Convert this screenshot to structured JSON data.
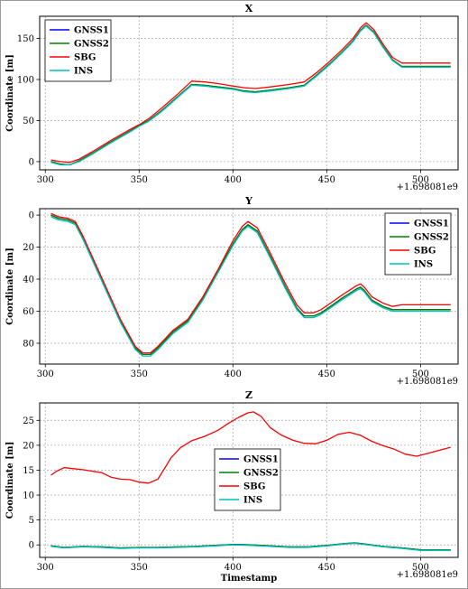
{
  "figure": {
    "offset_label": "+1.698081e9"
  },
  "chart_data": [
    {
      "type": "line",
      "title": "X",
      "xlabel": "",
      "ylabel": "Coordinate [m]",
      "xlim": [
        297,
        520
      ],
      "ylim": [
        -10,
        177
      ],
      "xticks": [
        300,
        350,
        400,
        450,
        500
      ],
      "yticks": [
        0,
        50,
        100,
        150
      ],
      "grid": true,
      "legend_placement": "top-left",
      "series": [
        {
          "name": "GNSS1",
          "color": "#0000ff",
          "x": [
            303,
            308,
            313,
            318,
            325,
            335,
            345,
            350,
            355,
            362,
            370,
            378,
            385,
            392,
            400,
            406,
            412,
            420,
            430,
            438,
            445,
            452,
            458,
            464,
            468,
            471,
            475,
            480,
            485,
            490,
            500,
            516
          ],
          "y": [
            0,
            -3,
            -4,
            1,
            10,
            24,
            37,
            44,
            50,
            62,
            78,
            94,
            93,
            91,
            89,
            86,
            85,
            87,
            90,
            93,
            106,
            120,
            133,
            147,
            160,
            166,
            158,
            140,
            124,
            116,
            116,
            116
          ]
        },
        {
          "name": "GNSS2",
          "color": "#008000",
          "x": [
            303,
            308,
            313,
            318,
            325,
            335,
            345,
            350,
            355,
            362,
            370,
            378,
            385,
            392,
            400,
            406,
            412,
            420,
            430,
            438,
            445,
            452,
            458,
            464,
            468,
            471,
            475,
            480,
            485,
            490,
            500,
            516
          ],
          "y": [
            0,
            -3,
            -4,
            1,
            10,
            24,
            37,
            44,
            50,
            62,
            78,
            94,
            93,
            91,
            89,
            86,
            85,
            87,
            90,
            93,
            106,
            120,
            133,
            147,
            160,
            166,
            158,
            140,
            124,
            116,
            116,
            116
          ]
        },
        {
          "name": "SBG",
          "color": "#ff0000",
          "x": [
            303,
            308,
            313,
            318,
            325,
            335,
            345,
            350,
            355,
            362,
            370,
            378,
            385,
            392,
            400,
            406,
            412,
            420,
            430,
            438,
            445,
            452,
            458,
            464,
            468,
            471,
            475,
            480,
            485,
            490,
            500,
            516
          ],
          "y": [
            2,
            0,
            -1,
            3,
            12,
            26,
            39,
            45,
            52,
            65,
            81,
            98,
            97,
            95,
            92,
            90,
            89,
            91,
            94,
            97,
            109,
            123,
            136,
            150,
            163,
            169,
            161,
            143,
            127,
            120,
            120,
            120
          ]
        },
        {
          "name": "INS",
          "color": "#00bfbf",
          "x": [
            303,
            308,
            313,
            318,
            325,
            335,
            345,
            350,
            355,
            362,
            370,
            378,
            385,
            392,
            400,
            406,
            412,
            420,
            430,
            438,
            445,
            452,
            458,
            464,
            468,
            471,
            475,
            480,
            485,
            490,
            500,
            516
          ],
          "y": [
            -1,
            -4,
            -4,
            0,
            9,
            23,
            36,
            43,
            49,
            61,
            77,
            93,
            92,
            90,
            88,
            85,
            84,
            86,
            89,
            92,
            105,
            119,
            132,
            146,
            159,
            165,
            157,
            139,
            123,
            115,
            115,
            115
          ]
        }
      ]
    },
    {
      "type": "line",
      "title": "Y",
      "xlabel": "",
      "ylabel": "Coordinate [m]",
      "xlim": [
        297,
        520
      ],
      "ylim": [
        93,
        -4
      ],
      "xticks": [
        300,
        350,
        400,
        450,
        500
      ],
      "yticks": [
        0,
        20,
        40,
        60,
        80
      ],
      "grid": true,
      "legend_placement": "top-right",
      "series": [
        {
          "name": "GNSS1",
          "color": "#0000ff",
          "x": [
            303,
            307,
            312,
            316,
            320,
            330,
            340,
            348,
            352,
            356,
            360,
            368,
            376,
            384,
            392,
            400,
            405,
            408,
            413,
            420,
            428,
            434,
            438,
            443,
            447,
            452,
            458,
            462,
            466,
            468,
            470,
            474,
            480,
            485,
            490,
            500,
            516
          ],
          "y": [
            0,
            2,
            3,
            5,
            14,
            40,
            66,
            83,
            87,
            87,
            83,
            73,
            66,
            52,
            35,
            18,
            9,
            6,
            10,
            26,
            45,
            58,
            63,
            63,
            61,
            57,
            52,
            49,
            46,
            45,
            47,
            53,
            57,
            59,
            59,
            59,
            59
          ]
        },
        {
          "name": "GNSS2",
          "color": "#008000",
          "x": [
            303,
            307,
            312,
            316,
            320,
            330,
            340,
            348,
            352,
            356,
            360,
            368,
            376,
            384,
            392,
            400,
            405,
            408,
            413,
            420,
            428,
            434,
            438,
            443,
            447,
            452,
            458,
            462,
            466,
            468,
            470,
            474,
            480,
            485,
            490,
            500,
            516
          ],
          "y": [
            0,
            2,
            3,
            5,
            14,
            40,
            66,
            83,
            87,
            87,
            83,
            73,
            66,
            52,
            35,
            18,
            9,
            6,
            10,
            26,
            45,
            58,
            63,
            63,
            61,
            57,
            52,
            49,
            46,
            45,
            47,
            53,
            57,
            59,
            59,
            59,
            59
          ]
        },
        {
          "name": "SBG",
          "color": "#ff0000",
          "x": [
            303,
            307,
            312,
            316,
            320,
            330,
            340,
            348,
            352,
            356,
            360,
            368,
            376,
            384,
            392,
            400,
            405,
            408,
            413,
            420,
            428,
            434,
            438,
            443,
            447,
            452,
            458,
            462,
            466,
            468,
            470,
            474,
            480,
            485,
            490,
            500,
            516
          ],
          "y": [
            -1,
            1,
            2,
            4,
            13,
            39,
            65,
            82,
            86,
            86,
            82,
            72,
            65,
            51,
            34,
            16,
            7,
            4,
            8,
            24,
            43,
            56,
            61,
            61,
            59,
            55,
            50,
            47,
            44,
            43,
            45,
            51,
            55,
            57,
            56,
            56,
            56
          ]
        },
        {
          "name": "INS",
          "color": "#00bfbf",
          "x": [
            303,
            307,
            312,
            316,
            320,
            330,
            340,
            348,
            352,
            356,
            360,
            368,
            376,
            384,
            392,
            400,
            405,
            408,
            413,
            420,
            428,
            434,
            438,
            443,
            447,
            452,
            458,
            462,
            466,
            468,
            470,
            474,
            480,
            485,
            490,
            500,
            516
          ],
          "y": [
            1,
            3,
            4,
            6,
            15,
            41,
            67,
            84,
            88,
            88,
            84,
            74,
            67,
            53,
            36,
            19,
            10,
            7,
            11,
            27,
            46,
            59,
            64,
            64,
            62,
            58,
            53,
            50,
            47,
            46,
            48,
            54,
            58,
            60,
            60,
            60,
            60
          ]
        }
      ]
    },
    {
      "type": "line",
      "title": "Z",
      "xlabel": "Timestamp",
      "ylabel": "Coordinate [m]",
      "xlim": [
        297,
        520
      ],
      "ylim": [
        -2.5,
        28.5
      ],
      "xticks": [
        300,
        350,
        400,
        450,
        500
      ],
      "yticks": [
        0,
        5,
        10,
        15,
        20,
        25
      ],
      "grid": true,
      "legend_placement": "center",
      "series": [
        {
          "name": "GNSS1",
          "color": "#0000ff",
          "x": [
            303,
            310,
            320,
            330,
            340,
            350,
            360,
            370,
            380,
            390,
            400,
            410,
            420,
            430,
            440,
            450,
            460,
            465,
            470,
            480,
            490,
            500,
            510,
            516
          ],
          "y": [
            -0.2,
            -0.5,
            -0.3,
            -0.4,
            -0.6,
            -0.5,
            -0.5,
            -0.4,
            -0.3,
            -0.1,
            0.1,
            0.0,
            -0.2,
            -0.4,
            -0.4,
            -0.1,
            0.3,
            0.4,
            0.2,
            -0.3,
            -0.6,
            -1.0,
            -1.0,
            -1.0
          ]
        },
        {
          "name": "GNSS2",
          "color": "#008000",
          "x": [
            303,
            310,
            320,
            330,
            340,
            350,
            360,
            370,
            380,
            390,
            400,
            410,
            420,
            430,
            440,
            450,
            460,
            465,
            470,
            480,
            490,
            500,
            510,
            516
          ],
          "y": [
            -0.2,
            -0.5,
            -0.3,
            -0.4,
            -0.6,
            -0.5,
            -0.5,
            -0.4,
            -0.3,
            -0.1,
            0.1,
            0.0,
            -0.2,
            -0.4,
            -0.4,
            -0.1,
            0.3,
            0.4,
            0.2,
            -0.3,
            -0.6,
            -1.0,
            -1.0,
            -1.0
          ]
        },
        {
          "name": "SBG",
          "color": "#ff0000",
          "x": [
            303,
            306,
            310,
            315,
            320,
            325,
            330,
            335,
            340,
            345,
            350,
            355,
            360,
            363,
            367,
            372,
            378,
            385,
            392,
            398,
            403,
            408,
            411,
            415,
            420,
            426,
            432,
            438,
            444,
            450,
            456,
            462,
            468,
            474,
            480,
            486,
            492,
            498,
            505,
            511,
            516
          ],
          "y": [
            14.0,
            14.8,
            15.5,
            15.3,
            15.1,
            14.8,
            14.5,
            13.6,
            13.2,
            13.1,
            12.6,
            12.4,
            13.2,
            15.0,
            17.5,
            19.5,
            20.9,
            21.8,
            23.0,
            24.5,
            25.6,
            26.5,
            26.7,
            25.8,
            23.5,
            22.0,
            21.0,
            20.4,
            20.3,
            21.0,
            22.2,
            22.6,
            22.0,
            20.8,
            19.9,
            19.2,
            18.2,
            17.8,
            18.5,
            19.1,
            19.6
          ]
        },
        {
          "name": "INS",
          "color": "#00bfbf",
          "x": [
            303,
            310,
            320,
            330,
            340,
            350,
            360,
            370,
            380,
            390,
            400,
            410,
            420,
            430,
            440,
            450,
            460,
            465,
            470,
            480,
            490,
            500,
            510,
            516
          ],
          "y": [
            -0.3,
            -0.6,
            -0.4,
            -0.5,
            -0.7,
            -0.6,
            -0.6,
            -0.5,
            -0.4,
            -0.2,
            0.0,
            -0.1,
            -0.3,
            -0.5,
            -0.5,
            -0.2,
            0.2,
            0.3,
            0.1,
            -0.4,
            -0.7,
            -1.1,
            -1.1,
            -1.1
          ]
        }
      ]
    }
  ]
}
